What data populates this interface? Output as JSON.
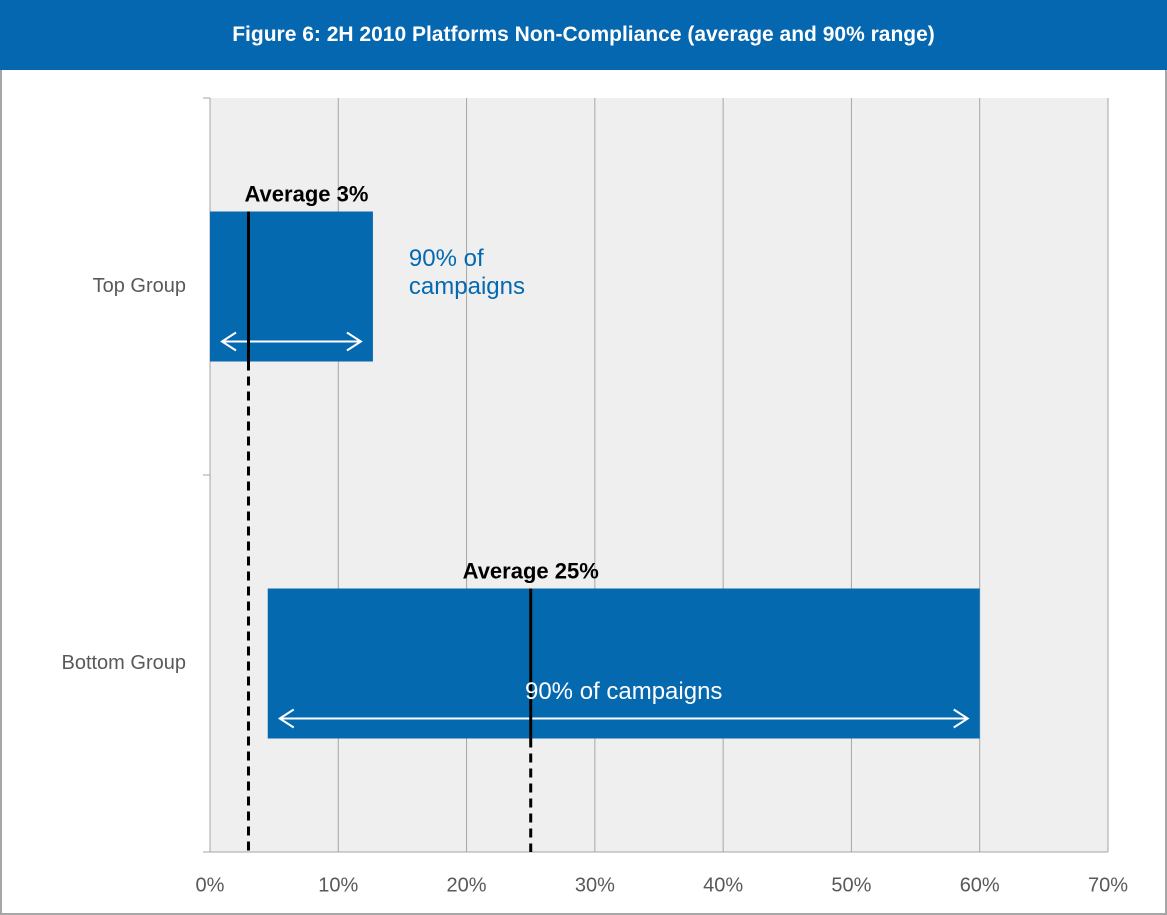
{
  "chart_data": {
    "type": "range_bar",
    "title": "Figure 6: 2H 2010 Platforms Non-Compliance (average and 90% range)",
    "categories": [
      "Top Group",
      "Bottom Group"
    ],
    "ranges": {
      "low": [
        0,
        4.5
      ],
      "high": [
        12.7,
        60
      ],
      "annotations": [
        "90% of campaigns",
        "90% of campaigns"
      ]
    },
    "averages": {
      "values": [
        3,
        25
      ],
      "value_labels": [
        "Average 3%",
        "Average 25%"
      ]
    },
    "color": "#0569b0",
    "xlim": [
      0,
      70
    ],
    "xticks": [
      {
        "value": 0,
        "label": "0%"
      },
      {
        "value": 10,
        "label": "10%"
      },
      {
        "value": 20,
        "label": "20%"
      },
      {
        "value": 30,
        "label": "30%"
      },
      {
        "value": 40,
        "label": "40%"
      },
      {
        "value": 50,
        "label": "50%"
      },
      {
        "value": 60,
        "label": "60%"
      },
      {
        "value": 70,
        "label": "70%"
      }
    ],
    "grid": true
  }
}
